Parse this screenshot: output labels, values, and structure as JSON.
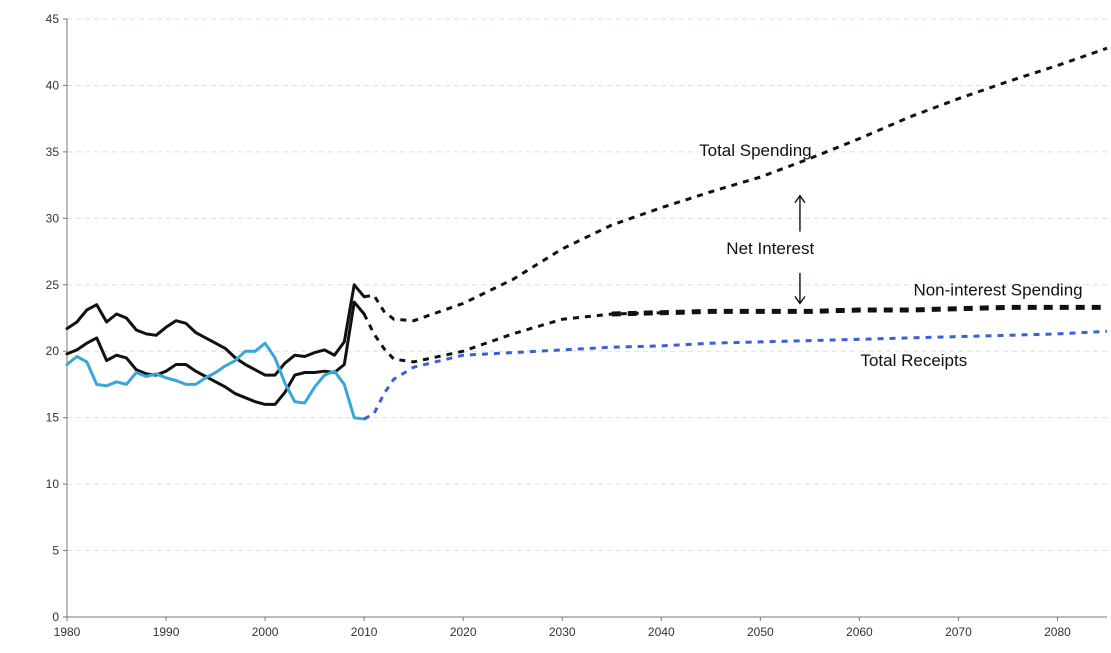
{
  "chart_data": {
    "type": "line",
    "title": "",
    "xlabel": "",
    "ylabel": "",
    "xlim": [
      1980,
      2085
    ],
    "ylim": [
      0,
      45
    ],
    "x_ticks": [
      "1980",
      "1990",
      "2000",
      "2010",
      "2020",
      "2030",
      "2040",
      "2050",
      "2060",
      "2070",
      "2080"
    ],
    "y_ticks": [
      "0",
      "5",
      "10",
      "15",
      "20",
      "25",
      "30",
      "35",
      "40",
      "45"
    ],
    "grid": "horizontal dashed",
    "legend": "none",
    "series": [
      {
        "name": "Total Spending",
        "color": "#111111",
        "historical": [
          [
            1980,
            21.7
          ],
          [
            1981,
            22.2
          ],
          [
            1982,
            23.1
          ],
          [
            1983,
            23.5
          ],
          [
            1984,
            22.2
          ],
          [
            1985,
            22.8
          ],
          [
            1986,
            22.5
          ],
          [
            1987,
            21.6
          ],
          [
            1988,
            21.3
          ],
          [
            1989,
            21.2
          ],
          [
            1990,
            21.8
          ],
          [
            1991,
            22.3
          ],
          [
            1992,
            22.1
          ],
          [
            1993,
            21.4
          ],
          [
            1994,
            21.0
          ],
          [
            1995,
            20.6
          ],
          [
            1996,
            20.2
          ],
          [
            1997,
            19.5
          ],
          [
            1998,
            19.0
          ],
          [
            1999,
            18.6
          ],
          [
            2000,
            18.2
          ],
          [
            2001,
            18.2
          ],
          [
            2002,
            19.1
          ],
          [
            2003,
            19.7
          ],
          [
            2004,
            19.6
          ],
          [
            2005,
            19.9
          ],
          [
            2006,
            20.1
          ],
          [
            2007,
            19.7
          ],
          [
            2008,
            20.7
          ],
          [
            2009,
            25.0
          ],
          [
            2010,
            24.1
          ]
        ],
        "projected": [
          [
            2010,
            24.1
          ],
          [
            2011,
            24.2
          ],
          [
            2012,
            23.0
          ],
          [
            2013,
            22.4
          ],
          [
            2015,
            22.3
          ],
          [
            2020,
            23.6
          ],
          [
            2025,
            25.4
          ],
          [
            2030,
            27.7
          ],
          [
            2035,
            29.5
          ],
          [
            2040,
            30.8
          ],
          [
            2045,
            32.0
          ],
          [
            2050,
            33.1
          ],
          [
            2055,
            34.5
          ],
          [
            2060,
            36.0
          ],
          [
            2065,
            37.6
          ],
          [
            2070,
            39.0
          ],
          [
            2075,
            40.3
          ],
          [
            2080,
            41.5
          ],
          [
            2085,
            42.8
          ]
        ]
      },
      {
        "name": "Non-interest Spending",
        "color": "#111111",
        "historical": [
          [
            1980,
            19.8
          ],
          [
            1981,
            20.1
          ],
          [
            1982,
            20.6
          ],
          [
            1983,
            21.0
          ],
          [
            1984,
            19.3
          ],
          [
            1985,
            19.7
          ],
          [
            1986,
            19.5
          ],
          [
            1987,
            18.6
          ],
          [
            1988,
            18.3
          ],
          [
            1989,
            18.2
          ],
          [
            1990,
            18.5
          ],
          [
            1991,
            19.0
          ],
          [
            1992,
            19.0
          ],
          [
            1993,
            18.5
          ],
          [
            1994,
            18.1
          ],
          [
            1995,
            17.7
          ],
          [
            1996,
            17.3
          ],
          [
            1997,
            16.8
          ],
          [
            1998,
            16.5
          ],
          [
            1999,
            16.2
          ],
          [
            2000,
            16.0
          ],
          [
            2001,
            16.0
          ],
          [
            2002,
            16.9
          ],
          [
            2003,
            18.2
          ],
          [
            2004,
            18.4
          ],
          [
            2005,
            18.4
          ],
          [
            2006,
            18.5
          ],
          [
            2007,
            18.4
          ],
          [
            2008,
            19.0
          ],
          [
            2009,
            23.7
          ],
          [
            2010,
            22.8
          ]
        ],
        "projected": [
          [
            2010,
            22.8
          ],
          [
            2011,
            21.3
          ],
          [
            2012,
            20.2
          ],
          [
            2013,
            19.4
          ],
          [
            2015,
            19.2
          ],
          [
            2020,
            20.0
          ],
          [
            2025,
            21.3
          ],
          [
            2030,
            22.4
          ],
          [
            2035,
            22.8
          ],
          [
            2040,
            22.9
          ],
          [
            2045,
            23.0
          ],
          [
            2050,
            23.0
          ],
          [
            2055,
            23.0
          ],
          [
            2060,
            23.1
          ],
          [
            2065,
            23.1
          ],
          [
            2070,
            23.2
          ],
          [
            2075,
            23.3
          ],
          [
            2080,
            23.3
          ],
          [
            2085,
            23.3
          ]
        ]
      },
      {
        "name": "Total Receipts",
        "color": "#3aa6d8",
        "projected_color": "#3b5fd6",
        "historical": [
          [
            1980,
            19.0
          ],
          [
            1981,
            19.6
          ],
          [
            1982,
            19.2
          ],
          [
            1983,
            17.5
          ],
          [
            1984,
            17.4
          ],
          [
            1985,
            17.7
          ],
          [
            1986,
            17.5
          ],
          [
            1987,
            18.4
          ],
          [
            1988,
            18.1
          ],
          [
            1989,
            18.3
          ],
          [
            1990,
            18.0
          ],
          [
            1991,
            17.8
          ],
          [
            1992,
            17.5
          ],
          [
            1993,
            17.5
          ],
          [
            1994,
            18.0
          ],
          [
            1995,
            18.4
          ],
          [
            1996,
            18.9
          ],
          [
            1997,
            19.3
          ],
          [
            1998,
            20.0
          ],
          [
            1999,
            20.0
          ],
          [
            2000,
            20.6
          ],
          [
            2001,
            19.5
          ],
          [
            2002,
            17.6
          ],
          [
            2003,
            16.2
          ],
          [
            2004,
            16.1
          ],
          [
            2005,
            17.3
          ],
          [
            2006,
            18.2
          ],
          [
            2007,
            18.5
          ],
          [
            2008,
            17.5
          ],
          [
            2009,
            15.0
          ],
          [
            2010,
            14.9
          ]
        ],
        "projected": [
          [
            2010,
            14.9
          ],
          [
            2011,
            15.3
          ],
          [
            2012,
            16.8
          ],
          [
            2013,
            17.9
          ],
          [
            2015,
            18.8
          ],
          [
            2020,
            19.7
          ],
          [
            2025,
            19.9
          ],
          [
            2030,
            20.1
          ],
          [
            2035,
            20.3
          ],
          [
            2040,
            20.4
          ],
          [
            2045,
            20.6
          ],
          [
            2050,
            20.7
          ],
          [
            2055,
            20.8
          ],
          [
            2060,
            20.9
          ],
          [
            2065,
            21.0
          ],
          [
            2070,
            21.1
          ],
          [
            2075,
            21.2
          ],
          [
            2080,
            21.3
          ],
          [
            2085,
            21.5
          ]
        ]
      }
    ],
    "annotations": {
      "total_spending": "Total Spending",
      "net_interest": "Net Interest",
      "non_interest_spending": "Non-interest Spending",
      "total_receipts": "Total Receipts"
    }
  }
}
